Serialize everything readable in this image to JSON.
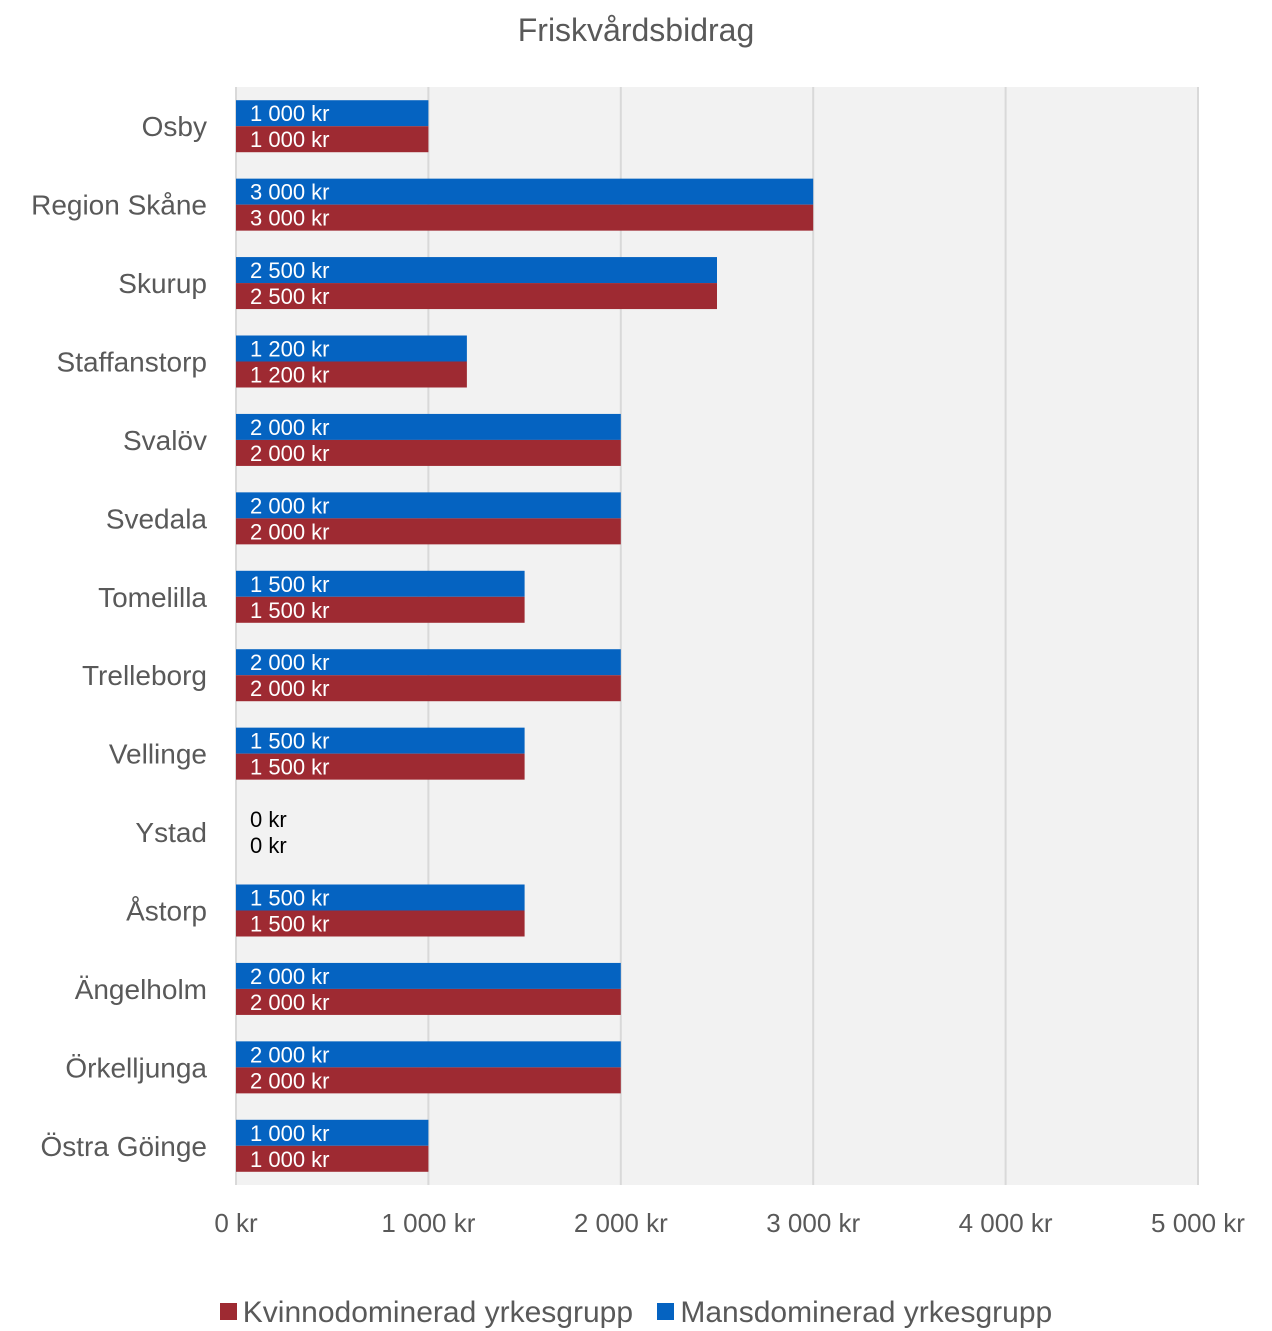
{
  "chart_data": {
    "type": "bar",
    "orientation": "horizontal",
    "title": "Friskvårdsbidrag",
    "categories": [
      "Osby",
      "Region Skåne",
      "Skurup",
      "Staffanstorp",
      "Svalöv",
      "Svedala",
      "Tomelilla",
      "Trelleborg",
      "Vellinge",
      "Ystad",
      "Åstorp",
      "Ängelholm",
      "Örkelljunga",
      "Östra Göinge"
    ],
    "series": [
      {
        "name": "Mansdominerad yrkesgrupp",
        "color": "#0563C1",
        "values": [
          1000,
          3000,
          2500,
          1200,
          2000,
          2000,
          1500,
          2000,
          1500,
          0,
          1500,
          2000,
          2000,
          1000
        ],
        "data_labels": [
          "1 000 kr",
          "3 000 kr",
          "2 500 kr",
          "1 200 kr",
          "2 000 kr",
          "2 000 kr",
          "1 500 kr",
          "2 000 kr",
          "1 500 kr",
          "0 kr",
          "1 500 kr",
          "2 000 kr",
          "2 000 kr",
          "1 000 kr"
        ]
      },
      {
        "name": "Kvinnodominerad yrkesgrupp",
        "color": "#9E2A32",
        "values": [
          1000,
          3000,
          2500,
          1200,
          2000,
          2000,
          1500,
          2000,
          1500,
          0,
          1500,
          2000,
          2000,
          1000
        ],
        "data_labels": [
          "1 000 kr",
          "3 000 kr",
          "2 500 kr",
          "1 200 kr",
          "2 000 kr",
          "2 000 kr",
          "1 500 kr",
          "2 000 kr",
          "1 500 kr",
          "0 kr",
          "1 500 kr",
          "2 000 kr",
          "2 000 kr",
          "1 000 kr"
        ]
      }
    ],
    "xlim": [
      0,
      5000
    ],
    "x_ticks": [
      0,
      1000,
      2000,
      3000,
      4000,
      5000
    ],
    "x_tick_labels": [
      "0 kr",
      "1 000 kr",
      "2 000 kr",
      "3 000 kr",
      "4 000 kr",
      "5 000 kr"
    ],
    "grid": true,
    "plot_background": "#F2F2F2",
    "legend_position": "bottom",
    "legend": [
      {
        "name": "Kvinnodominerad yrkesgrupp",
        "color": "#9E2A32"
      },
      {
        "name": "Mansdominerad yrkesgrupp",
        "color": "#0563C1"
      }
    ]
  }
}
